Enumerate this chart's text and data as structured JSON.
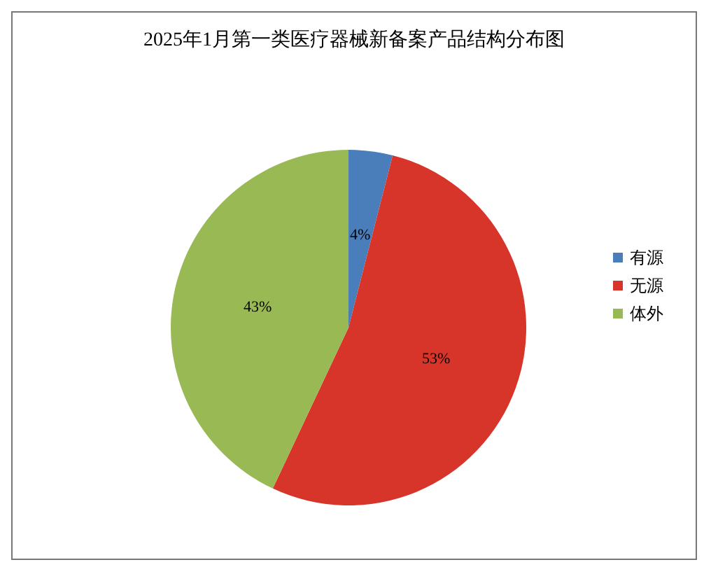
{
  "chart_data": {
    "type": "pie",
    "title": "2025年1月第一类医疗器械新备案产品结构分布图",
    "categories": [
      "有源",
      "无源",
      "体外"
    ],
    "values": [
      4,
      53,
      43
    ],
    "colors": [
      "#4a7ebb",
      "#d7342a",
      "#98b954"
    ],
    "value_labels": [
      "4%",
      "53%",
      "43%"
    ],
    "legend": "right"
  }
}
